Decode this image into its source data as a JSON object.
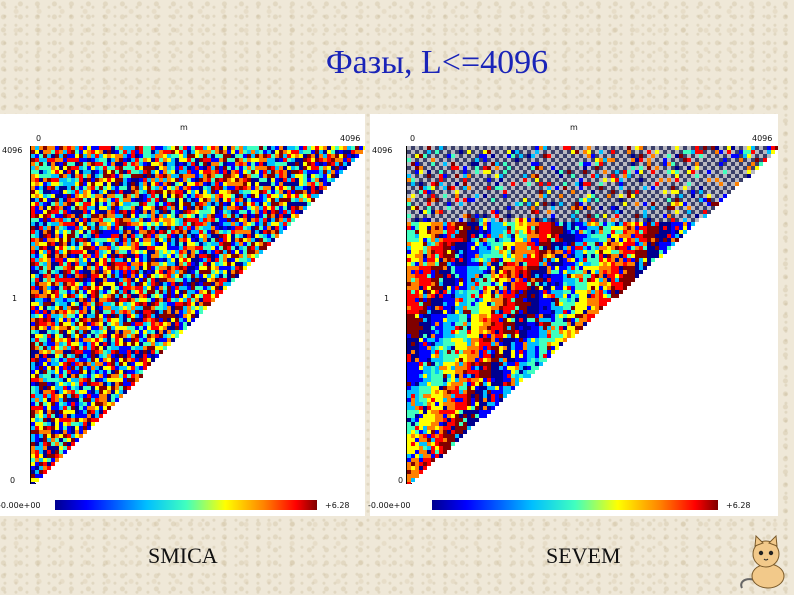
{
  "title": "Фазы, L<=4096",
  "panels": [
    {
      "id": "smica",
      "axis_top_label": "m",
      "x_min": "0",
      "x_max": "4096",
      "y_top": "4096",
      "y_mid": "1",
      "y_bottom": "0",
      "colorbar_min": "-0.00e+00",
      "colorbar_max": "+6.28"
    },
    {
      "id": "sevem",
      "axis_top_label": "m",
      "x_min": "0",
      "x_max": "4096",
      "y_top": "4096",
      "y_mid": "1",
      "y_bottom": "0",
      "colorbar_min": "-0.00e+00",
      "colorbar_max": "+6.28"
    }
  ],
  "captions": {
    "smica": "SMICA",
    "sevem": "SEVEM"
  },
  "colors": {
    "title": "#1a24b8",
    "colormap": [
      "#00008f",
      "#0000ff",
      "#00bfff",
      "#40ffbf",
      "#ffff00",
      "#ff8000",
      "#ff0000",
      "#800000"
    ]
  },
  "icons": {
    "mascot": "cat-mascot-icon"
  }
}
